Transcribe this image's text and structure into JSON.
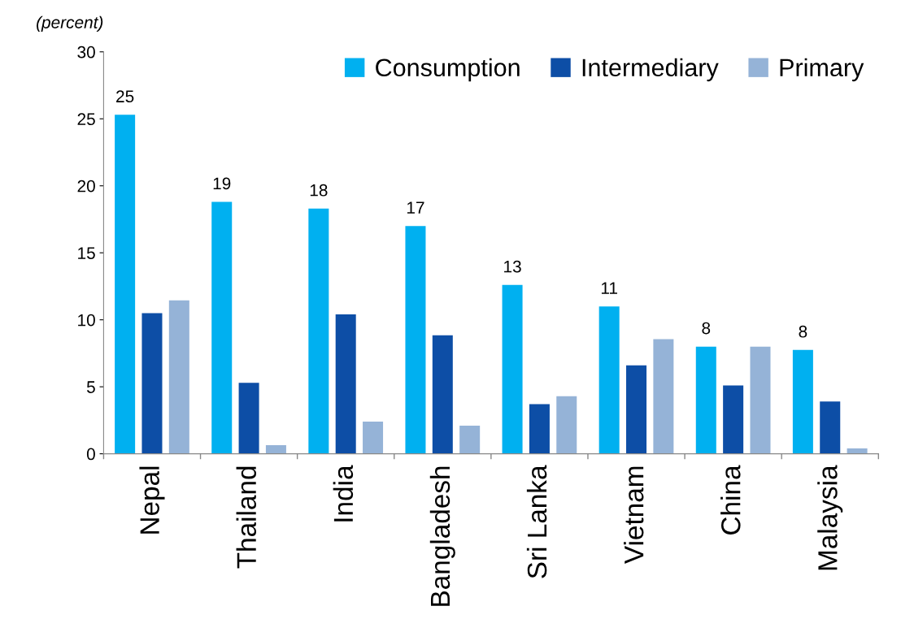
{
  "chart_data": {
    "type": "bar",
    "ylabel": "(percent)",
    "categories": [
      "Nepal",
      "Thailand",
      "India",
      "Bangladesh",
      "Sri Lanka",
      "Vietnam",
      "China",
      "Malaysia"
    ],
    "series": [
      {
        "name": "Consumption",
        "color": "#00b0f0",
        "values": [
          25.3,
          18.8,
          18.3,
          17.0,
          12.6,
          11.0,
          8.0,
          7.75
        ],
        "value_labels": [
          "25",
          "19",
          "18",
          "17",
          "13",
          "11",
          "8",
          "8"
        ]
      },
      {
        "name": "Intermediary",
        "color": "#0d4ea6",
        "values": [
          10.5,
          5.3,
          10.4,
          8.85,
          3.7,
          6.6,
          5.1,
          3.9
        ]
      },
      {
        "name": "Primary",
        "color": "#95b3d7",
        "values": [
          11.45,
          0.65,
          2.4,
          2.1,
          4.3,
          8.55,
          8.0,
          0.4
        ]
      }
    ],
    "ylim": [
      0,
      30
    ],
    "yticks": [
      0,
      5,
      10,
      15,
      20,
      25,
      30
    ],
    "grid": false,
    "legend": "top right"
  }
}
